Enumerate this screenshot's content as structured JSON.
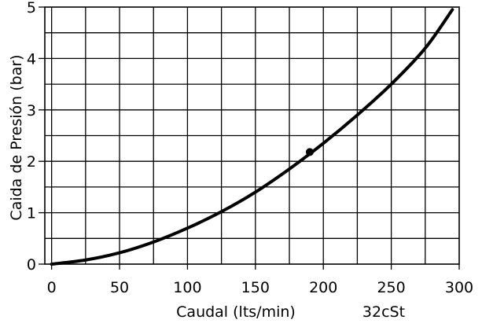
{
  "chart_data": {
    "type": "line",
    "title": "",
    "xlabel": "Caudal (lts/min)",
    "ylabel": "Caida de Presión (bar)",
    "annotation": "32cSt",
    "xlim": [
      -5,
      300
    ],
    "ylim": [
      0,
      5
    ],
    "x_ticks": [
      0,
      50,
      100,
      150,
      200,
      250,
      300
    ],
    "y_ticks": [
      0,
      1,
      2,
      3,
      4,
      5
    ],
    "x_grid_step": 25,
    "y_grid_step": 0.5,
    "grid": true,
    "series": [
      {
        "x": [
          0,
          25,
          50,
          75,
          100,
          125,
          150,
          175,
          200,
          225,
          250,
          275,
          295
        ],
        "y": [
          0,
          0.08,
          0.22,
          0.43,
          0.7,
          1.02,
          1.4,
          1.85,
          2.35,
          2.9,
          3.5,
          4.2,
          4.95
        ]
      }
    ],
    "marker": {
      "x": 190,
      "y": 2.18
    }
  }
}
